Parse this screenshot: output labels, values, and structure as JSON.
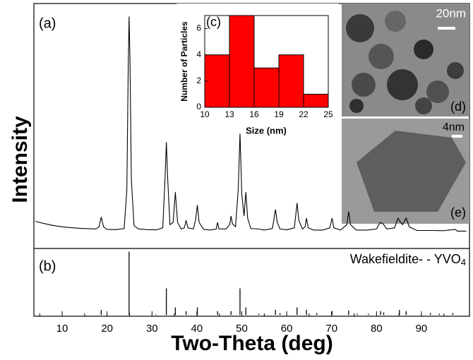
{
  "chart_data": [
    {
      "type": "line",
      "panel_label": "(a)",
      "y_label": "Intensity",
      "color": "#000000",
      "xlim": [
        3.7,
        100.7
      ],
      "ylim": [
        -7,
        106
      ],
      "x": [
        4,
        6,
        8,
        10,
        12,
        14,
        16,
        17.5,
        18.2,
        18.7,
        19.2,
        20,
        22,
        23.8,
        24.4,
        24.7,
        24.9,
        25.1,
        25.4,
        26,
        27,
        29,
        31,
        32.4,
        32.9,
        33.2,
        33.5,
        34,
        34.7,
        35.2,
        35.7,
        36.5,
        37.2,
        37.6,
        38,
        39.2,
        39.7,
        40.1,
        40.5,
        41.5,
        43,
        44.3,
        44.6,
        44.9,
        46.5,
        47.3,
        47.6,
        47.9,
        48.6,
        49.2,
        49.6,
        50,
        50.5,
        50.9,
        51.3,
        52,
        53.8,
        55,
        56.8,
        57.2,
        57.5,
        57.9,
        58.5,
        60,
        61.7,
        62.1,
        62.3,
        62.7,
        63.5,
        64.1,
        64.4,
        64.8,
        66,
        68,
        69.6,
        70.1,
        70.5,
        72,
        73.4,
        73.8,
        74.2,
        75.5,
        78,
        80,
        80.8,
        81.4,
        82.3,
        84,
        84.8,
        85.2,
        85.8,
        86.6,
        87.3,
        89,
        92,
        95,
        97.5,
        98,
        100
      ],
      "values": [
        5.5,
        4.5,
        3.6,
        3,
        2.6,
        2.3,
        2.1,
        2,
        3,
        7.5,
        3,
        1.8,
        1.7,
        2.2,
        20,
        75,
        100,
        80,
        25,
        3.5,
        2,
        1.7,
        1.6,
        2.5,
        25,
        42,
        25,
        4,
        5,
        19,
        5,
        2,
        2.5,
        6,
        2.5,
        2,
        6,
        13,
        5,
        1.8,
        1.5,
        2,
        5,
        2,
        2,
        4,
        8,
        4.5,
        3,
        20,
        46,
        18,
        8,
        19,
        7,
        2.2,
        2,
        1.5,
        2.2,
        7,
        11,
        5,
        2,
        1.6,
        2.5,
        10,
        14,
        6,
        2,
        3,
        7,
        2.5,
        1.5,
        1.5,
        2.5,
        7,
        2.5,
        1.5,
        4,
        10,
        4,
        1.5,
        1.5,
        2,
        5,
        4.5,
        2,
        2.5,
        7,
        5.5,
        4,
        7,
        3,
        1.3,
        1.3,
        1.2,
        1.8,
        1,
        1
      ]
    },
    {
      "type": "stick",
      "panel_label": "(b)",
      "label_text": "Wakefieldite- - YVO",
      "label_subscript": "4",
      "color": "#000000",
      "x_label": "Two-Theta (deg)",
      "xlim": [
        3.7,
        100.7
      ],
      "ylim": [
        -2,
        105
      ],
      "xticks": [
        10,
        20,
        30,
        40,
        50,
        60,
        70,
        80,
        90
      ],
      "xticks_minor": [
        5,
        15,
        25,
        35,
        45,
        55,
        65,
        75,
        85,
        95
      ],
      "x": [
        18.7,
        24.9,
        30.9,
        33.2,
        35.2,
        37.6,
        40.1,
        44.6,
        47.6,
        49.6,
        50.9,
        53.8,
        57.5,
        58.5,
        62.3,
        64.4,
        66.7,
        70.1,
        73.8,
        75.7,
        78.2,
        80.9,
        81.6,
        85.1,
        86.6,
        92,
        94,
        97
      ],
      "values": [
        8,
        100,
        1,
        42,
        12,
        6,
        12,
        6,
        6,
        42,
        12,
        2,
        8,
        3,
        12,
        8,
        3,
        6,
        7,
        2,
        2,
        6,
        4,
        8,
        6,
        3,
        2,
        3
      ]
    },
    {
      "type": "histogram",
      "panel_label": "(c)",
      "x_label": "Size (nm)",
      "y_label": "Number of Particles",
      "color": "#ff0000",
      "bins": [
        10,
        13,
        16,
        19,
        22,
        25
      ],
      "values": [
        4,
        7,
        3,
        4,
        1
      ],
      "xlim": [
        10,
        25
      ],
      "ylim": [
        0,
        7
      ],
      "xticks": [
        10,
        13,
        16,
        19,
        22,
        25
      ],
      "yticks": [
        0,
        2,
        4,
        6
      ]
    }
  ],
  "images": [
    {
      "scale_label": "20nm",
      "panel_label": "(d)"
    },
    {
      "scale_label": "4nm",
      "panel_label": "(e)"
    }
  ]
}
